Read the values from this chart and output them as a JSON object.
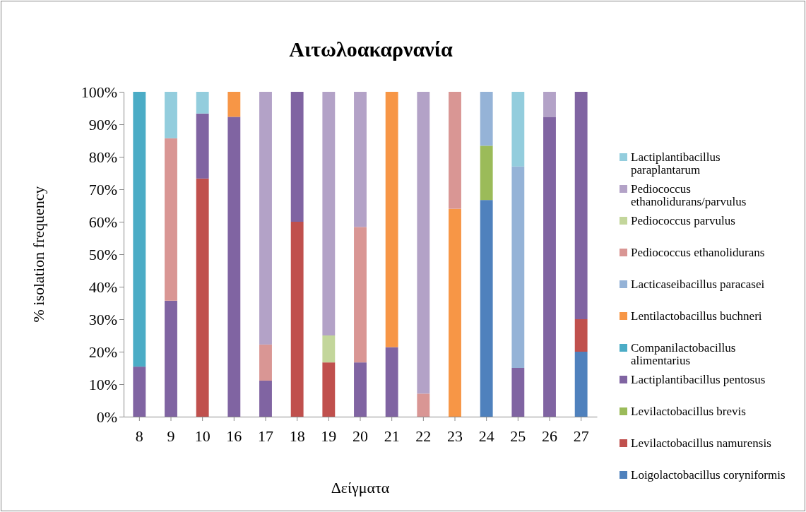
{
  "chart_data": {
    "type": "bar",
    "stacked": true,
    "title": "Αιτωλοακαρνανία",
    "xlabel": "Δείγματα",
    "ylabel": "% isolation frequency",
    "categories": [
      "8",
      "9",
      "10",
      "16",
      "17",
      "18",
      "19",
      "20",
      "21",
      "22",
      "23",
      "24",
      "25",
      "26",
      "27"
    ],
    "series": [
      {
        "name": "Loigolactobacillus coryniformis",
        "color": "#4f81bd",
        "values": [
          null,
          null,
          null,
          null,
          null,
          null,
          null,
          null,
          null,
          null,
          null,
          66.7,
          null,
          null,
          20
        ]
      },
      {
        "name": "Levilactobacillus namurensis",
        "color": "#c0504d",
        "values": [
          null,
          null,
          73.3,
          null,
          null,
          60,
          16.7,
          null,
          null,
          null,
          null,
          null,
          null,
          null,
          10
        ]
      },
      {
        "name": "Levilactobacillus brevis",
        "color": "#9bbb59",
        "values": [
          null,
          null,
          null,
          null,
          null,
          null,
          null,
          null,
          null,
          null,
          null,
          16.7,
          null,
          null,
          null
        ]
      },
      {
        "name": "Lactiplantibacillus pentosus",
        "color": "#8064a2",
        "values": [
          15.4,
          35.7,
          20,
          92.3,
          11.1,
          40,
          null,
          16.7,
          21.4,
          null,
          null,
          null,
          15,
          92.3,
          70
        ]
      },
      {
        "name": "Companilactobacillus alimentarius",
        "color": "#4bacc6",
        "values": [
          84.6,
          null,
          null,
          null,
          null,
          null,
          null,
          null,
          null,
          null,
          null,
          null,
          null,
          null,
          null
        ]
      },
      {
        "name": "Lentilactobacillus buchneri",
        "color": "#f79646",
        "values": [
          null,
          null,
          null,
          7.7,
          null,
          null,
          null,
          null,
          78.6,
          null,
          64,
          null,
          null,
          null,
          null
        ]
      },
      {
        "name": "Lacticaseibacillus paracasei",
        "color": "#95b3d7",
        "values": [
          null,
          null,
          null,
          null,
          null,
          null,
          null,
          null,
          null,
          null,
          null,
          16.6,
          62,
          null,
          null
        ]
      },
      {
        "name": "Pediococcus ethanolidurans",
        "color": "#d99694",
        "values": [
          null,
          50,
          null,
          null,
          11.1,
          null,
          null,
          41.7,
          null,
          7.1,
          36,
          null,
          null,
          null,
          null
        ]
      },
      {
        "name": "Pediococcus parvulus",
        "color": "#c3d69b",
        "values": [
          null,
          null,
          null,
          null,
          null,
          null,
          8.3,
          null,
          null,
          null,
          null,
          null,
          null,
          null,
          null
        ]
      },
      {
        "name": "Pediococcus ethanolidurans/parvulus",
        "color": "#b3a2c7",
        "values": [
          null,
          null,
          null,
          null,
          77.8,
          null,
          75,
          41.6,
          null,
          92.9,
          null,
          null,
          null,
          7.7,
          null
        ]
      },
      {
        "name": "Lactiplantibacillus paraplantarum",
        "color": "#93cddd",
        "values": [
          null,
          14.3,
          6.7,
          null,
          null,
          null,
          null,
          null,
          null,
          null,
          null,
          null,
          23,
          null,
          null
        ]
      }
    ],
    "ylim": [
      0,
      100
    ],
    "yticks": [
      {
        "value": 0,
        "label": "0%"
      },
      {
        "value": 10,
        "label": "10%"
      },
      {
        "value": 20,
        "label": "20%"
      },
      {
        "value": 30,
        "label": "30%"
      },
      {
        "value": 40,
        "label": "40%"
      },
      {
        "value": 50,
        "label": "50%"
      },
      {
        "value": 60,
        "label": "60%"
      },
      {
        "value": 70,
        "label": "70%"
      },
      {
        "value": 80,
        "label": "80%"
      },
      {
        "value": 90,
        "label": "90%"
      },
      {
        "value": 100,
        "label": "100%"
      }
    ],
    "legend": "right"
  }
}
